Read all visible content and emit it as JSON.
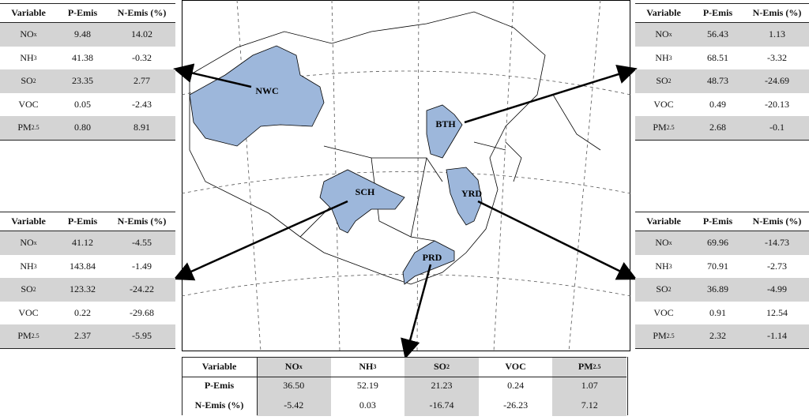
{
  "headers": [
    "Variable",
    "P-Emis",
    "N-Emis (%)"
  ],
  "variables": [
    {
      "text": "NO",
      "sub": "x"
    },
    {
      "text": "NH",
      "sub": "3"
    },
    {
      "text": "SO",
      "sub": "2"
    },
    {
      "text": "VOC"
    },
    {
      "text": "PM",
      "sub": "2.5"
    }
  ],
  "tables": [
    {
      "region": "NWC",
      "rows": [
        [
          "9.48",
          "14.02"
        ],
        [
          "41.38",
          "-0.32"
        ],
        [
          "23.35",
          "2.77"
        ],
        [
          "0.05",
          "-2.43"
        ],
        [
          "0.80",
          "8.91"
        ]
      ]
    },
    {
      "region": "BTH",
      "rows": [
        [
          "56.43",
          "1.13"
        ],
        [
          "68.51",
          "-3.32"
        ],
        [
          "48.73",
          "-24.69"
        ],
        [
          "0.49",
          "-20.13"
        ],
        [
          "2.68",
          "-0.1"
        ]
      ]
    },
    {
      "region": "SCH",
      "rows": [
        [
          "41.12",
          "-4.55"
        ],
        [
          "143.84",
          "-1.49"
        ],
        [
          "123.32",
          "-24.22"
        ],
        [
          "0.22",
          "-29.68"
        ],
        [
          "2.37",
          "-5.95"
        ]
      ]
    },
    {
      "region": "YRD",
      "rows": [
        [
          "69.96",
          "-14.73"
        ],
        [
          "70.91",
          "-2.73"
        ],
        [
          "36.89",
          "-4.99"
        ],
        [
          "0.91",
          "12.54"
        ],
        [
          "2.32",
          "-1.14"
        ]
      ]
    },
    {
      "region": "PRD",
      "rows": [
        [
          "36.50",
          "-5.42"
        ],
        [
          "52.19",
          "0.03"
        ],
        [
          "21.23",
          "-16.74"
        ],
        [
          "0.24",
          "-26.23"
        ],
        [
          "1.07",
          "7.12"
        ]
      ]
    }
  ]
}
